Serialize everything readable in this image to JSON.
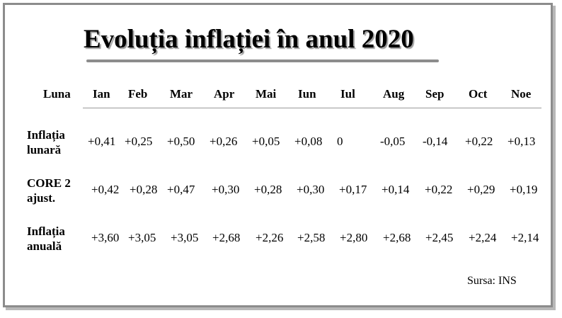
{
  "title": "Evoluția inflației în anul 2020",
  "header": {
    "first": "Luna",
    "months": [
      "Ian",
      "Feb",
      "Mar",
      "Apr",
      "Mai",
      "Iun",
      "Iul",
      "Aug",
      "Sep",
      "Oct",
      "Noe"
    ]
  },
  "rows": [
    {
      "label": "Inflația lunară",
      "values": [
        "+0,41",
        "+0,25",
        "+0,50",
        "+0,26",
        "+0,05",
        "+0,08",
        "0",
        "-0,05",
        "-0,14",
        "+0,22",
        "+0,13"
      ]
    },
    {
      "label": "CORE 2 ajust.",
      "values": [
        "+0,42",
        "+0,28",
        "+0,47",
        "+0,30",
        "+0,28",
        "+0,30",
        "+0,17",
        "+0,14",
        "+0,22",
        "+0,29",
        "+0,19"
      ]
    },
    {
      "label": "Inflația anuală",
      "values": [
        "+3,60",
        "+3,05",
        "+3,05",
        "+2,68",
        "+2,26",
        "+2,58",
        "+2,80",
        "+2,68",
        "+2,45",
        "+2,24",
        "+2,14"
      ]
    }
  ],
  "source": "Sursa: INS"
}
